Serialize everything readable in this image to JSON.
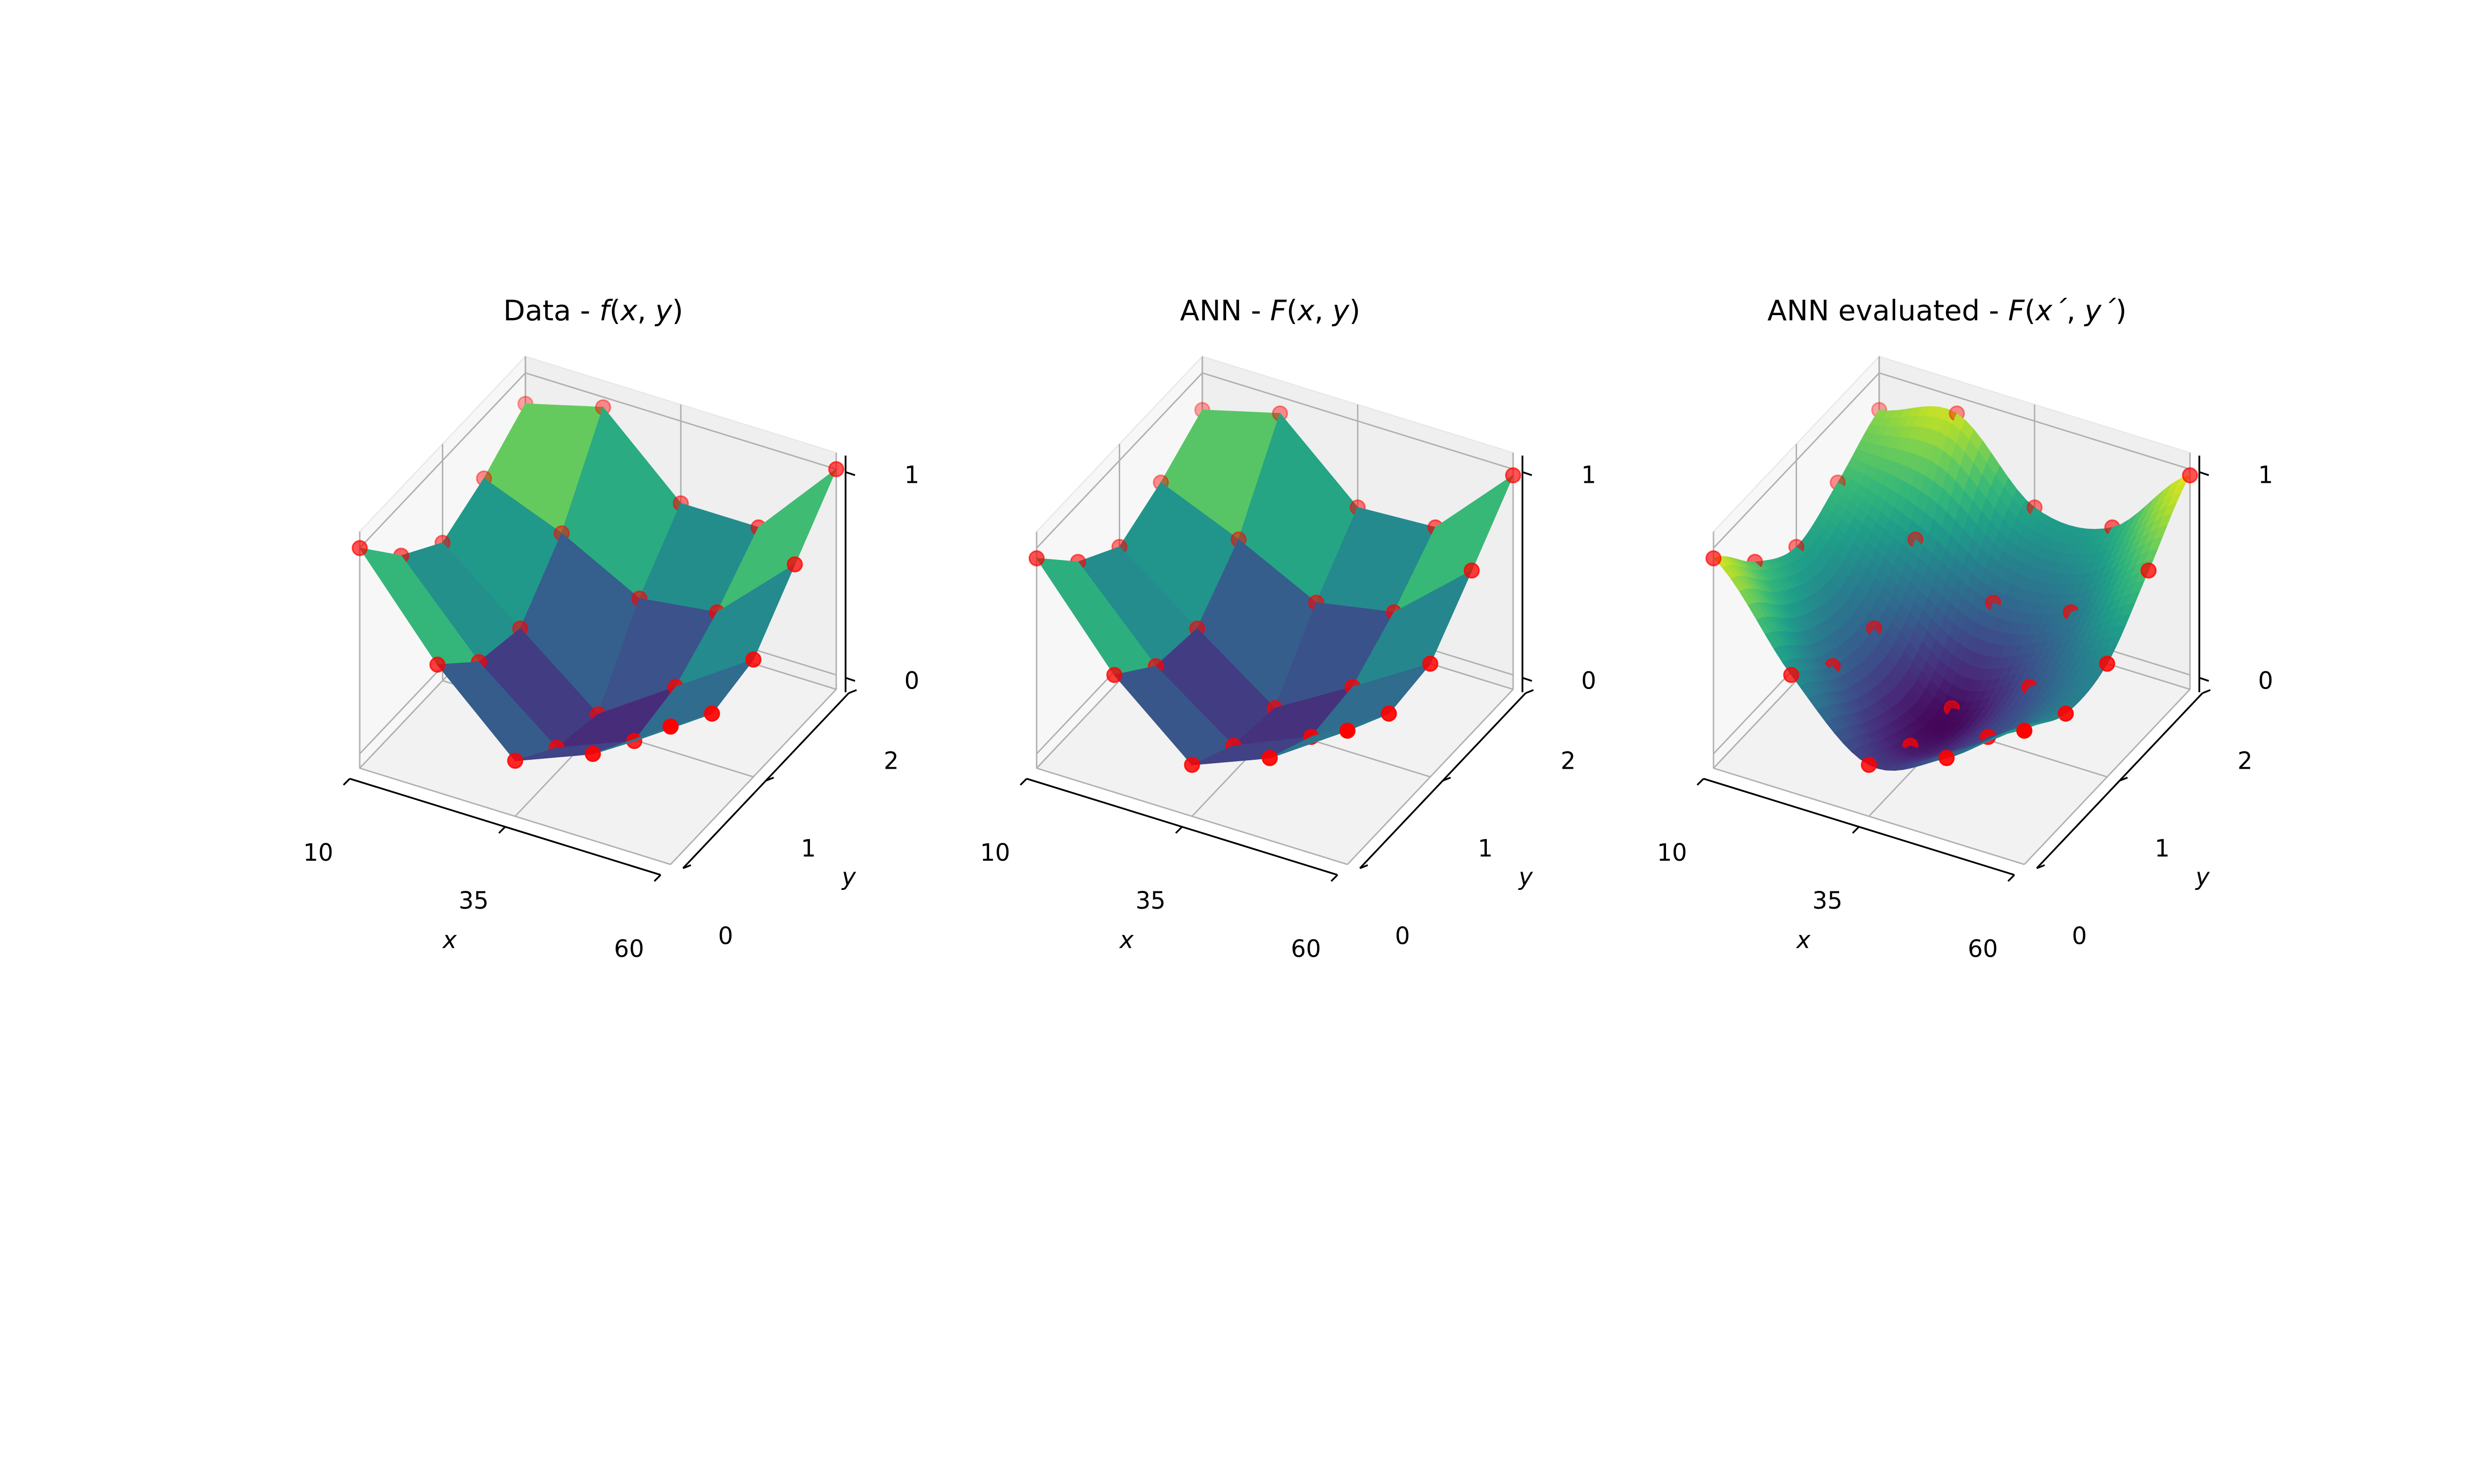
{
  "chart_data": [
    {
      "type": "surface3d",
      "id": "data",
      "title": [
        {
          "t": "Data - ",
          "i": false
        },
        {
          "t": "f",
          "i": true
        },
        {
          "t": "(",
          "i": false
        },
        {
          "t": "x",
          "i": true
        },
        {
          "t": ", ",
          "i": false
        },
        {
          "t": "y",
          "i": true
        },
        {
          "t": ")",
          "i": false
        }
      ],
      "xlabel": "x",
      "ylabel": "y",
      "xticks": [
        "10",
        "35",
        "60"
      ],
      "yticks": [
        "0",
        "1",
        "2"
      ],
      "zticks": [
        "0",
        "1"
      ],
      "xlim": [
        10,
        60
      ],
      "ylim": [
        0,
        2
      ],
      "zlim": [
        0,
        1
      ],
      "x": [
        10,
        22.5,
        35,
        47.5,
        60
      ],
      "y": [
        0,
        0.5,
        1,
        1.5,
        2
      ],
      "z": [
        [
          1.0,
          0.55,
          0.2,
          0.35,
          0.6
        ],
        [
          0.75,
          0.35,
          0.05,
          0.2,
          0.45
        ],
        [
          0.6,
          0.3,
          0.0,
          0.25,
          0.5
        ],
        [
          0.7,
          0.55,
          0.35,
          0.4,
          0.75
        ],
        [
          0.85,
          0.95,
          0.6,
          0.6,
          1.0
        ]
      ],
      "smooth": false,
      "point_color": "#ff0000",
      "colormap": "viridis"
    },
    {
      "type": "surface3d",
      "id": "ann",
      "title": [
        {
          "t": "ANN - ",
          "i": false
        },
        {
          "t": "F",
          "i": true
        },
        {
          "t": "(",
          "i": false
        },
        {
          "t": "x",
          "i": true
        },
        {
          "t": ", ",
          "i": false
        },
        {
          "t": "y",
          "i": true
        },
        {
          "t": ")",
          "i": false
        }
      ],
      "xlabel": "x",
      "ylabel": "y",
      "xticks": [
        "10",
        "35",
        "60"
      ],
      "yticks": [
        "0",
        "1",
        "2"
      ],
      "zticks": [
        "0",
        "1"
      ],
      "xlim": [
        10,
        60
      ],
      "ylim": [
        0,
        2
      ],
      "zlim": [
        0,
        1
      ],
      "x": [
        10,
        22.5,
        35,
        47.5,
        60
      ],
      "y": [
        0,
        0.5,
        1,
        1.5,
        2
      ],
      "z": [
        [
          0.95,
          0.5,
          0.18,
          0.33,
          0.58
        ],
        [
          0.72,
          0.33,
          0.06,
          0.22,
          0.45
        ],
        [
          0.58,
          0.3,
          0.03,
          0.25,
          0.48
        ],
        [
          0.68,
          0.52,
          0.33,
          0.4,
          0.72
        ],
        [
          0.82,
          0.92,
          0.58,
          0.6,
          0.97
        ]
      ],
      "smooth": false,
      "point_color": "#ff0000",
      "colormap": "viridis"
    },
    {
      "type": "surface3d",
      "id": "ann-evaluated",
      "title": [
        {
          "t": "ANN evaluated - ",
          "i": false
        },
        {
          "t": "F",
          "i": true
        },
        {
          "t": "(",
          "i": false
        },
        {
          "t": "x´",
          "i": true
        },
        {
          "t": ", ",
          "i": false
        },
        {
          "t": "y´",
          "i": true
        },
        {
          "t": ")",
          "i": false
        }
      ],
      "xlabel": "x",
      "ylabel": "y",
      "xticks": [
        "10",
        "35",
        "60"
      ],
      "yticks": [
        "0",
        "1",
        "2"
      ],
      "zticks": [
        "0",
        "1"
      ],
      "xlim": [
        10,
        60
      ],
      "ylim": [
        0,
        2
      ],
      "zlim": [
        0,
        1
      ],
      "x": [
        10,
        22.5,
        35,
        47.5,
        60
      ],
      "y": [
        0,
        0.5,
        1,
        1.5,
        2
      ],
      "z": [
        [
          0.95,
          0.5,
          0.18,
          0.33,
          0.58
        ],
        [
          0.72,
          0.33,
          0.06,
          0.22,
          0.45
        ],
        [
          0.58,
          0.3,
          0.03,
          0.25,
          0.48
        ],
        [
          0.68,
          0.52,
          0.33,
          0.4,
          0.72
        ],
        [
          0.82,
          0.92,
          0.58,
          0.6,
          0.97
        ]
      ],
      "smooth": true,
      "point_color": "#ff0000",
      "colormap": "viridis"
    }
  ]
}
